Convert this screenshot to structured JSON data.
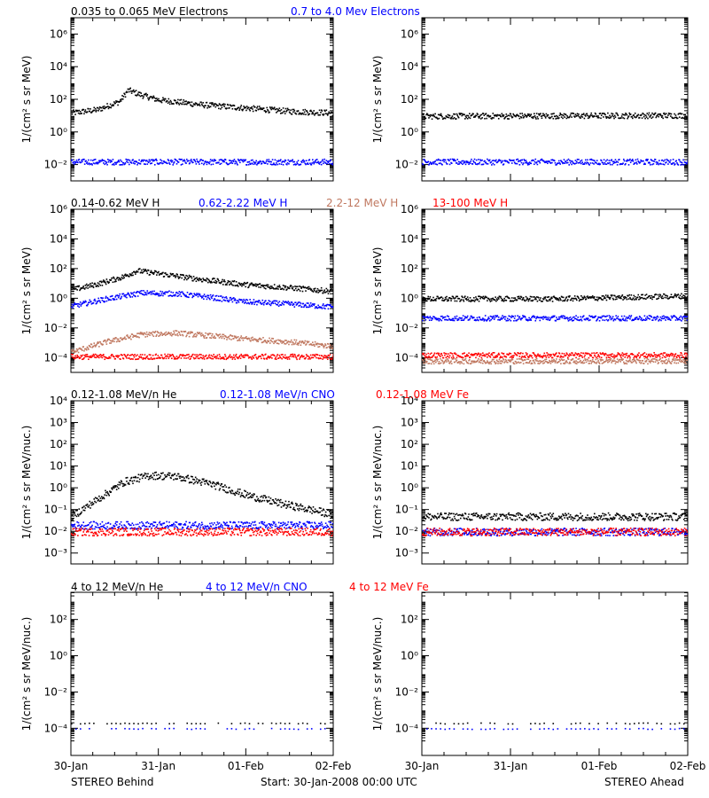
{
  "footer": {
    "left": "STEREO Behind",
    "center": "Start: 30-Jan-2008 00:00 UTC",
    "right": "STEREO Ahead"
  },
  "x_tick_labels": [
    "30-Jan",
    "31-Jan",
    "01-Feb",
    "02-Feb"
  ],
  "colors": {
    "black": "#000000",
    "blue": "#0000ff",
    "tan": "#c07860",
    "red": "#ff0000"
  },
  "chart_data": [
    {
      "type": "scatter",
      "id": "electrons-behind",
      "spacecraft": "STEREO Behind",
      "log_y": true,
      "ylim_exp": [
        -3,
        7
      ],
      "y_ticks_exp": [
        -2,
        0,
        2,
        4,
        6
      ],
      "ylabel_num": "1/",
      "ylabel": "(cm² s sr MeV)",
      "xlim_days": [
        0,
        3
      ],
      "series": [
        {
          "name": "0.035 to 0.065 MeV Electrons",
          "color": "#000000",
          "points": [
            [
              0,
              1.2
            ],
            [
              0.3,
              1.4
            ],
            [
              0.55,
              1.9
            ],
            [
              0.65,
              2.6
            ],
            [
              0.8,
              2.3
            ],
            [
              1.0,
              2.0
            ],
            [
              1.5,
              1.7
            ],
            [
              2.0,
              1.5
            ],
            [
              2.5,
              1.3
            ],
            [
              3.0,
              1.2
            ]
          ]
        },
        {
          "name": "0.7 to 4.0 Mev Electrons",
          "color": "#0000ff",
          "points": [
            [
              0,
              -1.8
            ],
            [
              3.0,
              -1.8
            ]
          ]
        }
      ]
    },
    {
      "type": "scatter",
      "id": "electrons-ahead",
      "spacecraft": "STEREO Ahead",
      "log_y": true,
      "ylim_exp": [
        -3,
        7
      ],
      "y_ticks_exp": [
        -2,
        0,
        2,
        4,
        6
      ],
      "ylabel_num": "1/",
      "ylabel": "(cm² s sr MeV)",
      "xlim_days": [
        0,
        3
      ],
      "series": [
        {
          "color": "#000000",
          "points": [
            [
              0,
              1.0
            ],
            [
              3.0,
              1.05
            ]
          ]
        },
        {
          "color": "#0000ff",
          "points": [
            [
              0,
              -1.8
            ],
            [
              3.0,
              -1.8
            ]
          ]
        }
      ]
    },
    {
      "type": "scatter",
      "id": "protons-behind",
      "spacecraft": "STEREO Behind",
      "log_y": true,
      "ylim_exp": [
        -5,
        6
      ],
      "y_ticks_exp": [
        -4,
        -2,
        0,
        2,
        4,
        6
      ],
      "ylabel_num": "1/",
      "ylabel": "(cm² s sr MeV)",
      "xlim_days": [
        0,
        3
      ],
      "series": [
        {
          "name": "0.14-0.62 MeV H",
          "color": "#000000",
          "points": [
            [
              0,
              0.6
            ],
            [
              0.3,
              1.0
            ],
            [
              0.6,
              1.5
            ],
            [
              0.75,
              1.9
            ],
            [
              1.0,
              1.7
            ],
            [
              1.5,
              1.3
            ],
            [
              2.0,
              0.95
            ],
            [
              2.5,
              0.75
            ],
            [
              3.0,
              0.5
            ]
          ]
        },
        {
          "name": "0.62-2.22 MeV H",
          "color": "#0000ff",
          "points": [
            [
              0,
              -0.5
            ],
            [
              0.4,
              0.0
            ],
            [
              0.8,
              0.4
            ],
            [
              1.2,
              0.35
            ],
            [
              1.6,
              0.1
            ],
            [
              2.0,
              -0.2
            ],
            [
              2.5,
              -0.35
            ],
            [
              3.0,
              -0.55
            ]
          ]
        },
        {
          "name": "2.2-12 MeV H",
          "color": "#c07860",
          "points": [
            [
              0,
              -3.6
            ],
            [
              0.4,
              -2.9
            ],
            [
              0.8,
              -2.4
            ],
            [
              1.2,
              -2.3
            ],
            [
              1.6,
              -2.5
            ],
            [
              2.0,
              -2.7
            ],
            [
              2.5,
              -2.9
            ],
            [
              3.0,
              -3.2
            ]
          ]
        },
        {
          "name": "13-100 MeV H",
          "color": "#ff0000",
          "points": [
            [
              0,
              -3.9
            ],
            [
              3.0,
              -3.9
            ]
          ]
        }
      ]
    },
    {
      "type": "scatter",
      "id": "protons-ahead",
      "spacecraft": "STEREO Ahead",
      "log_y": true,
      "ylim_exp": [
        -5,
        6
      ],
      "y_ticks_exp": [
        -4,
        -2,
        0,
        2,
        4,
        6
      ],
      "ylabel_num": "1/",
      "ylabel": "(cm² s sr MeV)",
      "xlim_days": [
        0,
        3
      ],
      "series": [
        {
          "color": "#000000",
          "points": [
            [
              0,
              0.0
            ],
            [
              1.5,
              0.0
            ],
            [
              3.0,
              0.2
            ]
          ]
        },
        {
          "color": "#0000ff",
          "points": [
            [
              0,
              -1.3
            ],
            [
              3.0,
              -1.3
            ]
          ]
        },
        {
          "color": "#c07860",
          "points": [
            [
              0,
              -4.2
            ],
            [
              3.0,
              -4.2
            ]
          ]
        },
        {
          "color": "#ff0000",
          "points": [
            [
              0,
              -3.8
            ],
            [
              3.0,
              -3.8
            ]
          ]
        }
      ]
    },
    {
      "type": "scatter",
      "id": "heavy-low-behind",
      "spacecraft": "STEREO Behind",
      "log_y": true,
      "ylim_exp": [
        -3.5,
        4
      ],
      "y_ticks_exp": [
        -3,
        -2,
        -1,
        0,
        1,
        2,
        3,
        4
      ],
      "ylabel_num": "1/",
      "ylabel": "(cm² s sr MeV/nuc.)",
      "xlim_days": [
        0,
        3
      ],
      "series": [
        {
          "name": "0.12-1.08 MeV/n He",
          "color": "#000000",
          "points": [
            [
              0,
              -1.3
            ],
            [
              0.3,
              -0.5
            ],
            [
              0.6,
              0.3
            ],
            [
              0.9,
              0.6
            ],
            [
              1.2,
              0.55
            ],
            [
              1.6,
              0.2
            ],
            [
              2.0,
              -0.3
            ],
            [
              2.4,
              -0.7
            ],
            [
              3.0,
              -1.2
            ]
          ]
        },
        {
          "name": "0.12-1.08 MeV/n CNO",
          "color": "#0000ff",
          "points": [
            [
              0,
              -1.7
            ],
            [
              3.0,
              -1.7
            ]
          ]
        },
        {
          "name": "0.12-1.08 MeV Fe",
          "color": "#ff0000",
          "points": [
            [
              0,
              -2.0
            ],
            [
              3.0,
              -2.0
            ]
          ]
        }
      ]
    },
    {
      "type": "scatter",
      "id": "heavy-low-ahead",
      "spacecraft": "STEREO Ahead",
      "log_y": true,
      "ylim_exp": [
        -3.5,
        4
      ],
      "y_ticks_exp": [
        -3,
        -2,
        -1,
        0,
        1,
        2,
        3,
        4
      ],
      "ylabel_num": "1/",
      "ylabel": "(cm² s sr MeV/nuc.)",
      "xlim_days": [
        0,
        3
      ],
      "series": [
        {
          "color": "#000000",
          "points": [
            [
              0,
              -1.3
            ],
            [
              3.0,
              -1.3
            ]
          ]
        },
        {
          "color": "#0000ff",
          "points": [
            [
              0,
              -2.0
            ],
            [
              3.0,
              -2.0
            ]
          ]
        },
        {
          "color": "#ff0000",
          "points": [
            [
              0,
              -2.0
            ],
            [
              3.0,
              -2.0
            ]
          ]
        }
      ]
    },
    {
      "type": "scatter",
      "id": "heavy-high-behind",
      "spacecraft": "STEREO Behind",
      "log_y": true,
      "ylim_exp": [
        -5.5,
        3.5
      ],
      "y_ticks_exp": [
        -4,
        -2,
        0,
        2
      ],
      "ylabel_num": "1/",
      "ylabel": "(cm² s sr MeV/nuc.)",
      "xlim_days": [
        0,
        3
      ],
      "series": [
        {
          "name": "4 to 12 MeV/n He",
          "color": "#000000",
          "points": [
            [
              0,
              -3.7
            ],
            [
              3.0,
              -3.7
            ]
          ]
        },
        {
          "name": "4 to 12 MeV/n CNO",
          "color": "#0000ff",
          "points": [
            [
              0,
              -4.0
            ],
            [
              3.0,
              -4.0
            ]
          ]
        },
        {
          "name": "4 to 12 MeV Fe",
          "color": "#ff0000",
          "points": []
        }
      ]
    },
    {
      "type": "scatter",
      "id": "heavy-high-ahead",
      "spacecraft": "STEREO Ahead",
      "log_y": true,
      "ylim_exp": [
        -5.5,
        3.5
      ],
      "y_ticks_exp": [
        -4,
        -2,
        0,
        2
      ],
      "ylabel_num": "1/",
      "ylabel": "(cm² s sr MeV/nuc.)",
      "xlim_days": [
        0,
        3
      ],
      "series": [
        {
          "color": "#000000",
          "points": [
            [
              0,
              -3.7
            ],
            [
              3.0,
              -3.7
            ]
          ]
        },
        {
          "color": "#0000ff",
          "points": [
            [
              0,
              -4.0
            ],
            [
              3.0,
              -4.0
            ]
          ]
        },
        {
          "color": "#ff0000",
          "points": []
        }
      ]
    }
  ]
}
